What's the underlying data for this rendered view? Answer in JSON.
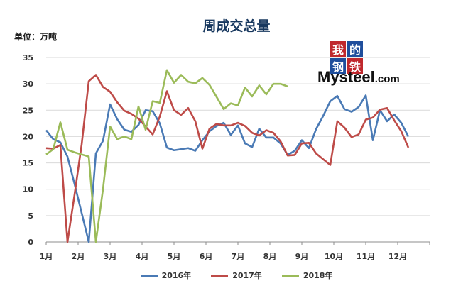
{
  "chart_data": {
    "type": "line",
    "title": "周成交总量",
    "ylabel": "单位：万吨",
    "ylim": [
      0,
      35
    ],
    "yticks": [
      0,
      5,
      10,
      15,
      20,
      25,
      30,
      35
    ],
    "xlim": [
      0,
      54
    ],
    "x_tick_labels": [
      "1月",
      "2月",
      "3月",
      "4月",
      "5月",
      "6月",
      "7月",
      "8月",
      "9月",
      "10月",
      "11月",
      "12月"
    ],
    "grid": true,
    "legend_position": "bottom",
    "series": [
      {
        "name": "2016年",
        "color": "#4a7ab5",
        "values": [
          21.2,
          19.5,
          18.9,
          16.2,
          11,
          5.5,
          0,
          16.8,
          19.2,
          26.1,
          23.3,
          21.3,
          20.9,
          22.2,
          25,
          24.8,
          22.5,
          17.9,
          17.4,
          17.6,
          17.8,
          17.3,
          19.3,
          21,
          22,
          22.6,
          20.3,
          22.1,
          18.7,
          18,
          21.5,
          19.8,
          19.8,
          18.7,
          16.5,
          17.3,
          19.3,
          17.8,
          21.4,
          23.9,
          26.7,
          27.7,
          25.2,
          24.7,
          25.6,
          27.8,
          19.3,
          25,
          22.9,
          24.2,
          22.6,
          20
        ]
      },
      {
        "name": "2017年",
        "color": "#be4b48",
        "values": [
          17.8,
          17.7,
          18.4,
          0,
          9,
          18.5,
          30.5,
          31.7,
          29.4,
          28.5,
          26.5,
          24.9,
          24.3,
          23.4,
          21.9,
          20.4,
          23.8,
          28.6,
          25,
          24.1,
          25.4,
          22.9,
          17.7,
          21.5,
          22.4,
          22.1,
          22.1,
          22.6,
          22,
          20.7,
          20.2,
          21.2,
          20.7,
          19.1,
          16.4,
          16.5,
          18.7,
          18.8,
          16.8,
          15.7,
          14.6,
          22.9,
          21.7,
          19.9,
          20.4,
          23.2,
          23.6,
          25.1,
          25.4,
          23.1,
          21,
          17.9
        ]
      },
      {
        "name": "2018年",
        "color": "#9bbb59",
        "values": [
          16.6,
          17.6,
          22.7,
          17.5,
          17,
          16.6,
          16.2,
          0,
          10,
          21.9,
          19.5,
          20,
          19.5,
          25.7,
          21.3,
          26.7,
          26.4,
          32.6,
          30.2,
          31.7,
          30.4,
          30.1,
          31.1,
          29.8,
          27.5,
          25.2,
          26.3,
          25.9,
          29.3,
          27.6,
          29.7,
          28,
          30,
          30,
          29.5
        ]
      }
    ]
  },
  "logo": {
    "chars": [
      "我",
      "的",
      "钢",
      "铁"
    ],
    "char_colors": [
      "#c0282d",
      "#1f4e9c",
      "#1f4e9c",
      "#c0282d"
    ],
    "word_big": "Mysteel",
    "word_small": ".com"
  }
}
